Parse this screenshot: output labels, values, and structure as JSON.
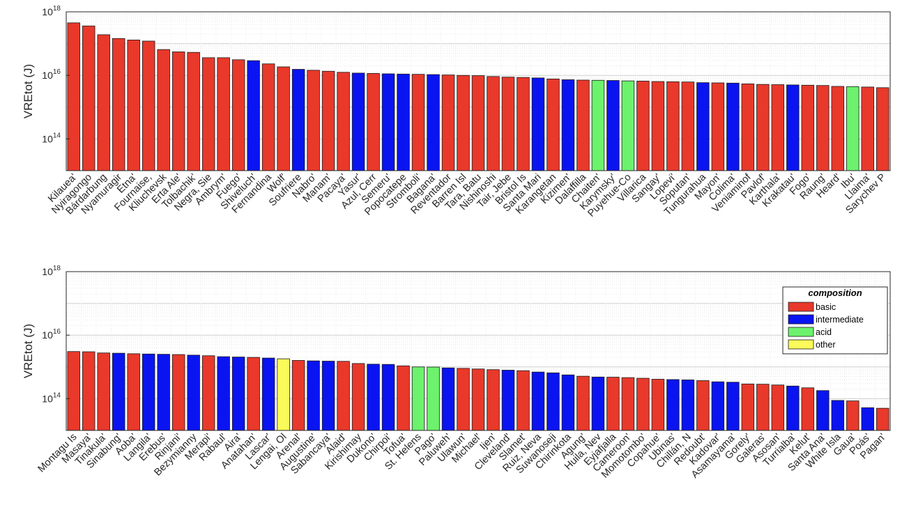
{
  "colors": {
    "basic": "#e8392b",
    "intermediate": "#0a14f0",
    "acid": "#6cf26c",
    "other": "#fafa5a"
  },
  "legend": {
    "title": "composition",
    "entries": [
      {
        "key": "basic",
        "label": "basic"
      },
      {
        "key": "intermediate",
        "label": "intermediate"
      },
      {
        "key": "acid",
        "label": "acid"
      },
      {
        "key": "other",
        "label": "other"
      }
    ]
  },
  "chart_data": [
    {
      "type": "bar",
      "title": "",
      "ylabel": "VREtot (J)",
      "yscale": "log",
      "ylim": [
        10000000000000.0,
        1e+18
      ],
      "yticks": [
        {
          "value": 100000000000000.0,
          "base": "10",
          "exp": "14"
        },
        {
          "value": 1e+16,
          "base": "10",
          "exp": "16"
        },
        {
          "value": 1e+18,
          "base": "10",
          "exp": "18"
        }
      ],
      "grid": true,
      "bars": [
        {
          "label": "Kilauea'",
          "value": 4.5e+17,
          "composition": "basic"
        },
        {
          "label": "Nyiragongo",
          "value": 3.6e+17,
          "composition": "basic"
        },
        {
          "label": "Bárdarbung",
          "value": 1.9e+17,
          "composition": "basic"
        },
        {
          "label": "Nyamuragir",
          "value": 1.45e+17,
          "composition": "basic"
        },
        {
          "label": "Etna'",
          "value": 1.3e+17,
          "composition": "basic"
        },
        {
          "label": "Fournaise,",
          "value": 1.2e+17,
          "composition": "basic"
        },
        {
          "label": "Kliuchevsk",
          "value": 6.5e+16,
          "composition": "basic"
        },
        {
          "label": "Erta Ale'",
          "value": 5.5e+16,
          "composition": "basic"
        },
        {
          "label": "Tolbachik'",
          "value": 5.3e+16,
          "composition": "basic"
        },
        {
          "label": "Negra, Sie",
          "value": 3.6e+16,
          "composition": "basic"
        },
        {
          "label": "Ambrym'",
          "value": 3.6e+16,
          "composition": "basic"
        },
        {
          "label": "Fuego'",
          "value": 3.1e+16,
          "composition": "basic"
        },
        {
          "label": "Shiveluch'",
          "value": 2.9e+16,
          "composition": "intermediate"
        },
        {
          "label": "Fernandina",
          "value": 2.3e+16,
          "composition": "basic"
        },
        {
          "label": "Wolf'",
          "value": 1.85e+16,
          "composition": "basic"
        },
        {
          "label": "Soufriere",
          "value": 1.55e+16,
          "composition": "intermediate"
        },
        {
          "label": "Nabro'",
          "value": 1.45e+16,
          "composition": "basic"
        },
        {
          "label": "Manam'",
          "value": 1.35e+16,
          "composition": "basic"
        },
        {
          "label": "Pacaya'",
          "value": 1.25e+16,
          "composition": "basic"
        },
        {
          "label": "Yasur'",
          "value": 1.18e+16,
          "composition": "intermediate"
        },
        {
          "label": "Azul, Cerr",
          "value": 1.15e+16,
          "composition": "basic"
        },
        {
          "label": "Semeru'",
          "value": 1.12e+16,
          "composition": "intermediate"
        },
        {
          "label": "Popocatepe",
          "value": 1.1e+16,
          "composition": "intermediate"
        },
        {
          "label": "Stromboli'",
          "value": 1.08e+16,
          "composition": "basic"
        },
        {
          "label": "Bagana'",
          "value": 1.06e+16,
          "composition": "intermediate"
        },
        {
          "label": "Reventador",
          "value": 1.03e+16,
          "composition": "basic"
        },
        {
          "label": "Barren Isl",
          "value": 1e+16,
          "composition": "basic"
        },
        {
          "label": "Tara, Batu",
          "value": 9800000000000000.0,
          "composition": "basic"
        },
        {
          "label": "Nishinoshi",
          "value": 9200000000000000.0,
          "composition": "basic"
        },
        {
          "label": "Tair, Jebe",
          "value": 8800000000000000.0,
          "composition": "basic"
        },
        {
          "label": "Bristol Is",
          "value": 8600000000000000.0,
          "composition": "basic"
        },
        {
          "label": "Santa Mari",
          "value": 8300000000000000.0,
          "composition": "intermediate"
        },
        {
          "label": "Karangetan",
          "value": 7700000000000000.0,
          "composition": "basic"
        },
        {
          "label": "Kizimen'",
          "value": 7300000000000000.0,
          "composition": "intermediate"
        },
        {
          "label": "Dalaffilla",
          "value": 7100000000000000.0,
          "composition": "basic"
        },
        {
          "label": "Chaiten'",
          "value": 7000000000000000.0,
          "composition": "acid"
        },
        {
          "label": "Karymsky'",
          "value": 6900000000000000.0,
          "composition": "intermediate"
        },
        {
          "label": "Puyehue-Co",
          "value": 6700000000000000.0,
          "composition": "acid"
        },
        {
          "label": "Villarica",
          "value": 6600000000000000.0,
          "composition": "basic"
        },
        {
          "label": "Sangay'",
          "value": 6400000000000000.0,
          "composition": "basic"
        },
        {
          "label": "Lopevi'",
          "value": 6300000000000000.0,
          "composition": "basic"
        },
        {
          "label": "Soputan'",
          "value": 6200000000000000.0,
          "composition": "basic"
        },
        {
          "label": "Tungurahua",
          "value": 5900000000000000.0,
          "composition": "intermediate"
        },
        {
          "label": "Mayon'",
          "value": 5800000000000000.0,
          "composition": "basic"
        },
        {
          "label": "Colima'",
          "value": 5700000000000000.0,
          "composition": "intermediate"
        },
        {
          "label": "Veniaminof",
          "value": 5400000000000000.0,
          "composition": "basic"
        },
        {
          "label": "Pavlof'",
          "value": 5200000000000000.0,
          "composition": "basic"
        },
        {
          "label": "Karthala'",
          "value": 5100000000000000.0,
          "composition": "basic"
        },
        {
          "label": "Krakatau'",
          "value": 5000000000000000.0,
          "composition": "intermediate"
        },
        {
          "label": "Fogo'",
          "value": 4900000000000000.0,
          "composition": "basic"
        },
        {
          "label": "Raung'",
          "value": 4800000000000000.0,
          "composition": "basic"
        },
        {
          "label": "Heard'",
          "value": 4500000000000000.0,
          "composition": "basic"
        },
        {
          "label": "Ibu'",
          "value": 4400000000000000.0,
          "composition": "acid"
        },
        {
          "label": "Llaima'",
          "value": 4300000000000000.0,
          "composition": "basic"
        },
        {
          "label": "Sarychev P",
          "value": 4100000000000000.0,
          "composition": "basic"
        }
      ]
    },
    {
      "type": "bar",
      "title": "",
      "ylabel": "VREtot (J)",
      "yscale": "log",
      "ylim": [
        10000000000000.0,
        1e+18
      ],
      "yticks": [
        {
          "value": 100000000000000.0,
          "base": "10",
          "exp": "14"
        },
        {
          "value": 1e+16,
          "base": "10",
          "exp": "16"
        },
        {
          "value": 1e+18,
          "base": "10",
          "exp": "18"
        }
      ],
      "grid": true,
      "legend_position": "right",
      "bars": [
        {
          "label": "Montagu Is",
          "value": 3050000000000000.0,
          "composition": "basic"
        },
        {
          "label": "Masaya'",
          "value": 3000000000000000.0,
          "composition": "basic"
        },
        {
          "label": "Tinakula'",
          "value": 2750000000000000.0,
          "composition": "basic"
        },
        {
          "label": "Sinabung'",
          "value": 2700000000000000.0,
          "composition": "intermediate"
        },
        {
          "label": "Aoba'",
          "value": 2600000000000000.0,
          "composition": "basic"
        },
        {
          "label": "Langila'",
          "value": 2550000000000000.0,
          "composition": "intermediate"
        },
        {
          "label": "Erebus'",
          "value": 2500000000000000.0,
          "composition": "intermediate"
        },
        {
          "label": "Rinjani'",
          "value": 2450000000000000.0,
          "composition": "basic"
        },
        {
          "label": "Bezymianny",
          "value": 2350000000000000.0,
          "composition": "intermediate"
        },
        {
          "label": "Merapi'",
          "value": 2250000000000000.0,
          "composition": "basic"
        },
        {
          "label": "Rabaul'",
          "value": 2100000000000000.0,
          "composition": "intermediate"
        },
        {
          "label": "Aira'",
          "value": 2050000000000000.0,
          "composition": "intermediate"
        },
        {
          "label": "Anatahan'",
          "value": 2000000000000000.0,
          "composition": "basic"
        },
        {
          "label": "Lascar'",
          "value": 1900000000000000.0,
          "composition": "intermediate"
        },
        {
          "label": "Lengai, Ol",
          "value": 1800000000000000.0,
          "composition": "other"
        },
        {
          "label": "Arenal'",
          "value": 1600000000000000.0,
          "composition": "basic"
        },
        {
          "label": "Augustine'",
          "value": 1550000000000000.0,
          "composition": "intermediate"
        },
        {
          "label": "Sabancaya'",
          "value": 1520000000000000.0,
          "composition": "intermediate"
        },
        {
          "label": "Alaid'",
          "value": 1500000000000000.0,
          "composition": "basic"
        },
        {
          "label": "Kirishimay",
          "value": 1280000000000000.0,
          "composition": "basic"
        },
        {
          "label": "Dukono'",
          "value": 1220000000000000.0,
          "composition": "intermediate"
        },
        {
          "label": "Chirpoi'",
          "value": 1200000000000000.0,
          "composition": "intermediate"
        },
        {
          "label": "Tofua'",
          "value": 1080000000000000.0,
          "composition": "basic"
        },
        {
          "label": "St. Helens",
          "value": 1000000000000000.0,
          "composition": "acid"
        },
        {
          "label": "Pago'",
          "value": 990000000000000.0,
          "composition": "acid"
        },
        {
          "label": "Paluweh'",
          "value": 930000000000000.0,
          "composition": "intermediate"
        },
        {
          "label": "Ulawun'",
          "value": 900000000000000.0,
          "composition": "basic"
        },
        {
          "label": "Michael'",
          "value": 860000000000000.0,
          "composition": "basic"
        },
        {
          "label": "Ijen'",
          "value": 820000000000000.0,
          "composition": "basic"
        },
        {
          "label": "Cleveland'",
          "value": 790000000000000.0,
          "composition": "intermediate"
        },
        {
          "label": "Slamet'",
          "value": 760000000000000.0,
          "composition": "basic"
        },
        {
          "label": "Ruiz, Neva",
          "value": 690000000000000.0,
          "composition": "intermediate"
        },
        {
          "label": "Suwanoseji",
          "value": 650000000000000.0,
          "composition": "intermediate"
        },
        {
          "label": "Chirinkota",
          "value": 560000000000000.0,
          "composition": "intermediate"
        },
        {
          "label": "Agung'",
          "value": 510000000000000.0,
          "composition": "basic"
        },
        {
          "label": "Huila, Nev",
          "value": 480000000000000.0,
          "composition": "intermediate"
        },
        {
          "label": "Eyjafjalla",
          "value": 475000000000000.0,
          "composition": "basic"
        },
        {
          "label": "Cameroon'",
          "value": 460000000000000.0,
          "composition": "basic"
        },
        {
          "label": "Momotombo'",
          "value": 440000000000000.0,
          "composition": "basic"
        },
        {
          "label": "Copahue'",
          "value": 410000000000000.0,
          "composition": "basic"
        },
        {
          "label": "Ubinas'",
          "value": 400000000000000.0,
          "composition": "intermediate"
        },
        {
          "label": "Chillán, N",
          "value": 390000000000000.0,
          "composition": "intermediate"
        },
        {
          "label": "Redoubt'",
          "value": 370000000000000.0,
          "composition": "basic"
        },
        {
          "label": "Kadovar'",
          "value": 340000000000000.0,
          "composition": "intermediate"
        },
        {
          "label": "Asamayama'",
          "value": 330000000000000.0,
          "composition": "intermediate"
        },
        {
          "label": "Gorely'",
          "value": 290000000000000.0,
          "composition": "basic"
        },
        {
          "label": "Galeras'",
          "value": 285000000000000.0,
          "composition": "basic"
        },
        {
          "label": "Asosan'",
          "value": 270000000000000.0,
          "composition": "basic"
        },
        {
          "label": "Turrialba'",
          "value": 250000000000000.0,
          "composition": "intermediate"
        },
        {
          "label": "Kelut'",
          "value": 220000000000000.0,
          "composition": "basic"
        },
        {
          "label": "Santa Ana'",
          "value": 180000000000000.0,
          "composition": "intermediate"
        },
        {
          "label": "White Isla",
          "value": 88000000000000.0,
          "composition": "intermediate"
        },
        {
          "label": "Gaua'",
          "value": 85000000000000.0,
          "composition": "basic"
        },
        {
          "label": "Poás'",
          "value": 52000000000000.0,
          "composition": "intermediate"
        },
        {
          "label": "Pagan'",
          "value": 50000000000000.0,
          "composition": "basic"
        }
      ]
    }
  ]
}
